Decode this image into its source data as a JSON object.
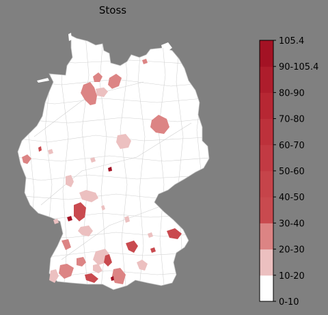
{
  "title": "Stoss",
  "colors": {
    "background": "#808080",
    "region_fill": "#ffffff",
    "region_border": "#c8c8c8"
  },
  "colorbar": {
    "max_label": "105.4",
    "bins": [
      {
        "label": "0-10",
        "color": "#ffffff"
      },
      {
        "label": "10-20",
        "color": "#ecc0c0"
      },
      {
        "label": "20-30",
        "color": "#dc8484"
      },
      {
        "label": "30-40",
        "color": "#c94a4f"
      },
      {
        "label": "40-50",
        "color": "#c6444a"
      },
      {
        "label": "50-60",
        "color": "#c23a43"
      },
      {
        "label": "60-70",
        "color": "#bd313b"
      },
      {
        "label": "70-80",
        "color": "#b72733"
      },
      {
        "label": "80-90",
        "color": "#ae1d2c"
      },
      {
        "label": "90-105.4",
        "color": "#a31224"
      },
      {
        "label": "105.4",
        "color": "#970b1f"
      }
    ]
  }
}
